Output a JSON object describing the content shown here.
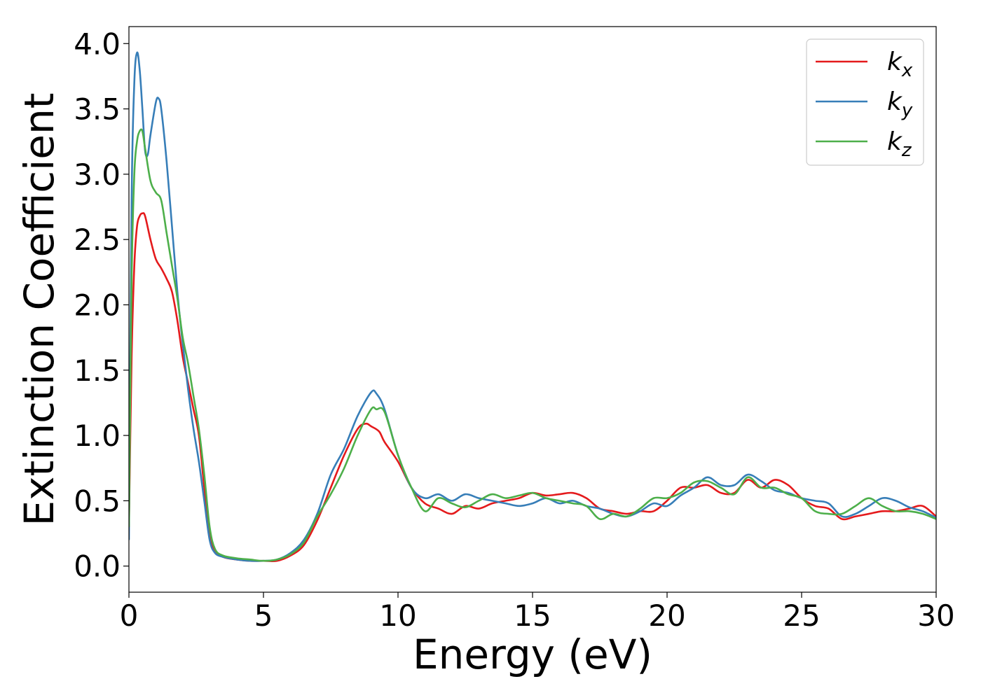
{
  "chart_data": {
    "type": "line",
    "title": "",
    "xlabel": "Energy (eV)",
    "ylabel": "Extinction Coefficient",
    "xlim": [
      0,
      30
    ],
    "ylim": [
      -0.2,
      4.13
    ],
    "xticks": [
      0,
      5,
      10,
      15,
      20,
      25,
      30
    ],
    "xtick_labels": [
      "0",
      "5",
      "10",
      "15",
      "20",
      "25",
      "30"
    ],
    "yticks": [
      0.0,
      0.5,
      1.0,
      1.5,
      2.0,
      2.5,
      3.0,
      3.5,
      4.0
    ],
    "ytick_labels": [
      "0.0",
      "0.5",
      "1.0",
      "1.5",
      "2.0",
      "2.5",
      "3.0",
      "3.5",
      "4.0"
    ],
    "grid": false,
    "legend_position": "top-right",
    "series": [
      {
        "name": "k",
        "subscript": "x",
        "color": "#e41a1c",
        "x": [
          0,
          0.1,
          0.2,
          0.3,
          0.4,
          0.5,
          0.6,
          0.8,
          1.0,
          1.2,
          1.4,
          1.6,
          1.8,
          2.0,
          2.2,
          2.4,
          2.6,
          2.8,
          3.0,
          3.2,
          3.5,
          4.0,
          4.5,
          5.0,
          5.5,
          6.0,
          6.5,
          7.0,
          7.5,
          8.0,
          8.5,
          8.8,
          9.0,
          9.3,
          9.5,
          10.0,
          10.5,
          11.0,
          11.5,
          12.0,
          12.5,
          13.0,
          13.5,
          14.0,
          14.5,
          15.0,
          15.5,
          16.0,
          16.5,
          17.0,
          17.5,
          18.0,
          18.5,
          19.0,
          19.5,
          20.0,
          20.5,
          21.0,
          21.5,
          22.0,
          22.5,
          23.0,
          23.5,
          24.0,
          24.5,
          25.0,
          25.5,
          26.0,
          26.5,
          27.0,
          27.5,
          28.0,
          28.5,
          29.0,
          29.5,
          30.0
        ],
        "y": [
          0.3,
          1.6,
          2.3,
          2.6,
          2.68,
          2.7,
          2.68,
          2.5,
          2.35,
          2.28,
          2.2,
          2.1,
          1.88,
          1.6,
          1.4,
          1.2,
          1.0,
          0.6,
          0.25,
          0.12,
          0.07,
          0.05,
          0.04,
          0.04,
          0.04,
          0.08,
          0.16,
          0.35,
          0.6,
          0.85,
          1.05,
          1.09,
          1.07,
          1.03,
          0.95,
          0.8,
          0.6,
          0.48,
          0.44,
          0.4,
          0.46,
          0.44,
          0.48,
          0.5,
          0.52,
          0.56,
          0.54,
          0.55,
          0.56,
          0.52,
          0.44,
          0.42,
          0.4,
          0.42,
          0.42,
          0.5,
          0.6,
          0.6,
          0.62,
          0.56,
          0.56,
          0.66,
          0.6,
          0.66,
          0.62,
          0.52,
          0.46,
          0.44,
          0.36,
          0.38,
          0.4,
          0.42,
          0.42,
          0.44,
          0.46,
          0.38
        ]
      },
      {
        "name": "k",
        "subscript": "y",
        "color": "#377eb8",
        "x": [
          0,
          0.1,
          0.2,
          0.3,
          0.4,
          0.5,
          0.6,
          0.7,
          0.8,
          1.0,
          1.1,
          1.2,
          1.4,
          1.6,
          1.8,
          2.0,
          2.2,
          2.4,
          2.6,
          2.8,
          3.0,
          3.2,
          3.5,
          4.0,
          4.5,
          5.0,
          5.5,
          6.0,
          6.5,
          7.0,
          7.5,
          8.0,
          8.5,
          9.0,
          9.2,
          9.5,
          10.0,
          10.5,
          11.0,
          11.5,
          12.0,
          12.5,
          13.0,
          13.5,
          14.0,
          14.5,
          15.0,
          15.5,
          16.0,
          16.5,
          17.0,
          17.5,
          18.0,
          18.5,
          19.0,
          19.5,
          20.0,
          20.5,
          21.0,
          21.5,
          22.0,
          22.5,
          23.0,
          23.5,
          24.0,
          24.5,
          25.0,
          25.5,
          26.0,
          26.5,
          27.0,
          27.5,
          28.0,
          28.5,
          29.0,
          29.5,
          30.0
        ],
        "y": [
          0.2,
          2.8,
          3.7,
          3.93,
          3.8,
          3.5,
          3.18,
          3.15,
          3.3,
          3.55,
          3.58,
          3.5,
          3.1,
          2.6,
          2.1,
          1.7,
          1.35,
          1.05,
          0.8,
          0.5,
          0.2,
          0.1,
          0.07,
          0.05,
          0.04,
          0.04,
          0.05,
          0.1,
          0.2,
          0.4,
          0.7,
          0.9,
          1.15,
          1.33,
          1.32,
          1.2,
          0.85,
          0.6,
          0.52,
          0.55,
          0.5,
          0.55,
          0.52,
          0.5,
          0.48,
          0.46,
          0.48,
          0.52,
          0.48,
          0.5,
          0.46,
          0.44,
          0.4,
          0.38,
          0.42,
          0.48,
          0.46,
          0.54,
          0.6,
          0.68,
          0.62,
          0.62,
          0.7,
          0.65,
          0.58,
          0.56,
          0.52,
          0.5,
          0.48,
          0.38,
          0.4,
          0.46,
          0.52,
          0.5,
          0.45,
          0.42,
          0.37
        ]
      },
      {
        "name": "k",
        "subscript": "z",
        "color": "#4daf4a",
        "x": [
          0,
          0.1,
          0.2,
          0.3,
          0.4,
          0.5,
          0.6,
          0.8,
          1.0,
          1.2,
          1.4,
          1.6,
          1.8,
          2.0,
          2.2,
          2.4,
          2.6,
          2.8,
          3.0,
          3.2,
          3.5,
          4.0,
          4.5,
          5.0,
          5.5,
          6.0,
          6.5,
          7.0,
          7.5,
          8.0,
          8.5,
          9.0,
          9.2,
          9.5,
          10.0,
          10.5,
          11.0,
          11.5,
          12.0,
          12.5,
          13.0,
          13.5,
          14.0,
          14.5,
          15.0,
          15.5,
          16.0,
          16.5,
          17.0,
          17.5,
          18.0,
          18.5,
          19.0,
          19.5,
          20.0,
          20.5,
          21.0,
          21.5,
          22.0,
          22.5,
          23.0,
          23.5,
          24.0,
          24.5,
          25.0,
          25.5,
          26.0,
          26.5,
          27.0,
          27.5,
          28.0,
          28.5,
          29.0,
          29.5,
          30.0
        ],
        "y": [
          0.3,
          2.2,
          3.0,
          3.25,
          3.33,
          3.33,
          3.2,
          2.95,
          2.86,
          2.8,
          2.55,
          2.3,
          2.05,
          1.75,
          1.55,
          1.3,
          1.05,
          0.7,
          0.3,
          0.13,
          0.08,
          0.06,
          0.05,
          0.04,
          0.05,
          0.09,
          0.18,
          0.38,
          0.55,
          0.75,
          1.0,
          1.2,
          1.2,
          1.18,
          0.85,
          0.6,
          0.42,
          0.52,
          0.48,
          0.45,
          0.5,
          0.55,
          0.52,
          0.54,
          0.56,
          0.52,
          0.5,
          0.48,
          0.46,
          0.36,
          0.4,
          0.38,
          0.44,
          0.52,
          0.52,
          0.56,
          0.64,
          0.65,
          0.6,
          0.55,
          0.68,
          0.6,
          0.6,
          0.55,
          0.52,
          0.42,
          0.4,
          0.4,
          0.46,
          0.52,
          0.46,
          0.42,
          0.42,
          0.4,
          0.36
        ]
      }
    ]
  }
}
